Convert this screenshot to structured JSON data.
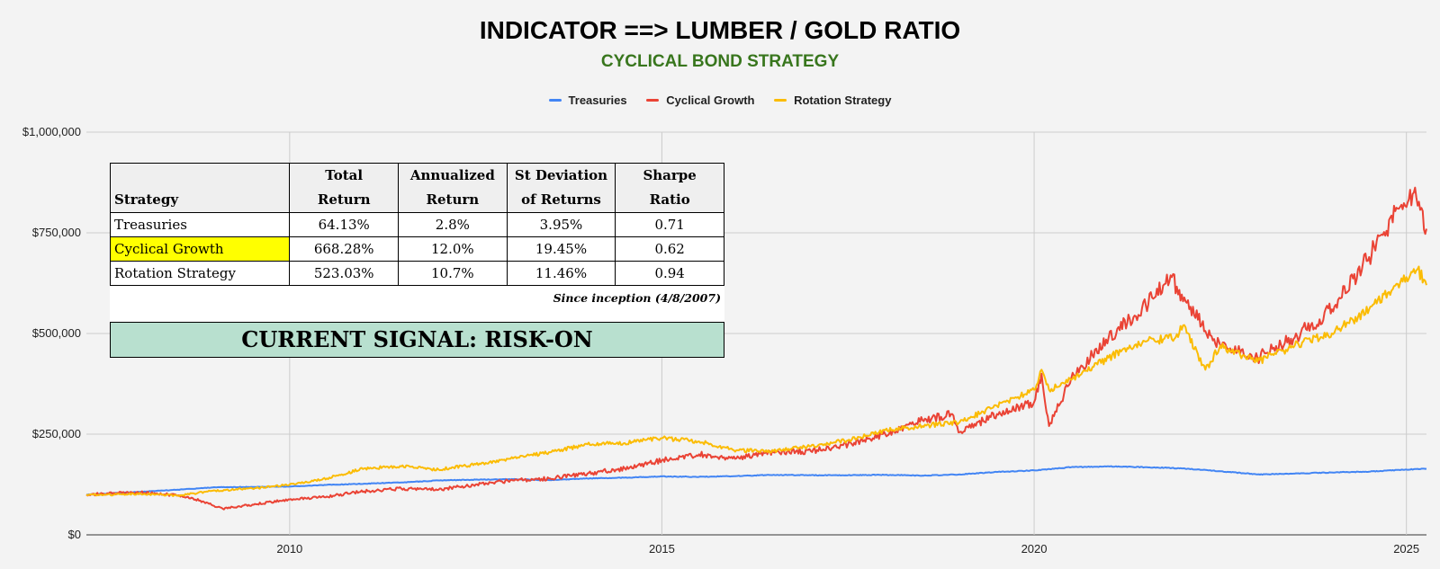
{
  "title": "INDICATOR ==> LUMBER / GOLD RATIO",
  "subtitle": "CYCLICAL BOND STRATEGY",
  "colors": {
    "treasuries": "#4285f4",
    "cyclical": "#ea4335",
    "rotation": "#fbbc04",
    "subtitle": "#38761d",
    "signal_bg": "#b8e0cf",
    "highlight": "#ffff00"
  },
  "chart_data": {
    "type": "line",
    "title": "INDICATOR ==> LUMBER / GOLD RATIO",
    "subtitle": "CYCLICAL BOND STRATEGY",
    "xlabel": "",
    "ylabel": "",
    "xlim": [
      2007.27,
      2025.27
    ],
    "ylim": [
      0,
      1000000
    ],
    "yticks": [
      0,
      250000,
      500000,
      750000,
      1000000
    ],
    "ytick_labels": [
      "$0",
      "$250,000",
      "$500,000",
      "$750,000",
      "$1,000,000"
    ],
    "xticks": [
      2010,
      2015,
      2020,
      2025
    ],
    "xtick_labels": [
      "2010",
      "2015",
      "2020",
      "2025"
    ],
    "grid": true,
    "legend_position": "top-center",
    "series": [
      {
        "name": "Treasuries",
        "color": "#4285f4",
        "x": [
          2007.27,
          2007.5,
          2008.0,
          2008.5,
          2009.0,
          2009.5,
          2010.0,
          2010.5,
          2011.0,
          2011.5,
          2012.0,
          2012.5,
          2013.0,
          2013.5,
          2014.0,
          2014.5,
          2015.0,
          2015.5,
          2016.0,
          2016.5,
          2017.0,
          2017.5,
          2018.0,
          2018.5,
          2019.0,
          2019.5,
          2020.0,
          2020.5,
          2021.0,
          2021.5,
          2022.0,
          2022.5,
          2023.0,
          2023.5,
          2024.0,
          2024.5,
          2025.0,
          2025.27
        ],
        "y": [
          100000,
          102000,
          107000,
          112000,
          118000,
          119000,
          120000,
          124000,
          127000,
          130000,
          135000,
          137000,
          138000,
          136000,
          140000,
          142000,
          145000,
          144000,
          146000,
          149000,
          148000,
          148000,
          149000,
          147000,
          150000,
          156000,
          160000,
          168000,
          170000,
          168000,
          165000,
          158000,
          150000,
          152000,
          155000,
          157000,
          162000,
          164000
        ]
      },
      {
        "name": "Cyclical Growth",
        "color": "#ea4335",
        "x": [
          2007.27,
          2007.5,
          2008.0,
          2008.5,
          2008.8,
          2009.1,
          2009.5,
          2010.0,
          2010.5,
          2011.0,
          2011.5,
          2012.0,
          2012.5,
          2013.0,
          2013.5,
          2014.0,
          2014.5,
          2015.0,
          2015.5,
          2016.0,
          2016.5,
          2017.0,
          2017.5,
          2018.0,
          2018.5,
          2018.9,
          2019.0,
          2019.5,
          2020.0,
          2020.1,
          2020.2,
          2020.5,
          2021.0,
          2021.5,
          2021.85,
          2022.0,
          2022.5,
          2023.0,
          2023.5,
          2024.0,
          2024.5,
          2024.9,
          2025.1,
          2025.27
        ],
        "y": [
          100000,
          102000,
          105000,
          98000,
          85000,
          65000,
          75000,
          88000,
          95000,
          108000,
          115000,
          112000,
          125000,
          135000,
          140000,
          152000,
          165000,
          185000,
          200000,
          190000,
          205000,
          208000,
          225000,
          250000,
          285000,
          300000,
          255000,
          300000,
          330000,
          400000,
          270000,
          390000,
          490000,
          570000,
          640000,
          580000,
          470000,
          440000,
          490000,
          560000,
          690000,
          810000,
          850000,
          760000
        ]
      },
      {
        "name": "Rotation Strategy",
        "color": "#fbbc04",
        "x": [
          2007.27,
          2007.5,
          2008.0,
          2008.5,
          2009.0,
          2009.5,
          2010.0,
          2010.5,
          2011.0,
          2011.5,
          2012.0,
          2012.5,
          2013.0,
          2013.5,
          2014.0,
          2014.5,
          2015.0,
          2015.5,
          2016.0,
          2016.5,
          2017.0,
          2017.5,
          2018.0,
          2018.5,
          2019.0,
          2019.5,
          2020.0,
          2020.1,
          2020.2,
          2020.5,
          2021.0,
          2021.5,
          2021.9,
          2022.0,
          2022.3,
          2022.5,
          2023.0,
          2023.5,
          2024.0,
          2024.5,
          2025.0,
          2025.15,
          2025.27
        ],
        "y": [
          100000,
          99000,
          102000,
          97000,
          110000,
          115000,
          125000,
          140000,
          165000,
          170000,
          162000,
          175000,
          190000,
          205000,
          225000,
          228000,
          240000,
          232000,
          210000,
          208000,
          220000,
          235000,
          260000,
          270000,
          280000,
          320000,
          360000,
          410000,
          360000,
          385000,
          440000,
          480000,
          490000,
          520000,
          410000,
          470000,
          430000,
          470000,
          500000,
          560000,
          640000,
          660000,
          620000
        ]
      }
    ]
  },
  "stats_table": {
    "headers": [
      {
        "line1": "",
        "line2": "Strategy"
      },
      {
        "line1": "Total",
        "line2": "Return"
      },
      {
        "line1": "Annualized",
        "line2": "Return"
      },
      {
        "line1": "St Deviation",
        "line2": "of Returns"
      },
      {
        "line1": "Sharpe",
        "line2": "Ratio"
      }
    ],
    "rows": [
      {
        "name": "Treasuries",
        "total_return": "64.13%",
        "annualized": "2.8%",
        "stdev": "3.95%",
        "sharpe": "0.71"
      },
      {
        "name": "Cyclical Growth",
        "total_return": "668.28%",
        "annualized": "12.0%",
        "stdev": "19.45%",
        "sharpe": "0.62"
      },
      {
        "name": "Rotation Strategy",
        "total_return": "523.03%",
        "annualized": "10.7%",
        "stdev": "11.46%",
        "sharpe": "0.94"
      }
    ],
    "inception_note": "Since inception (4/8/2007)"
  },
  "signal": {
    "text": "CURRENT SIGNAL: RISK-ON"
  }
}
